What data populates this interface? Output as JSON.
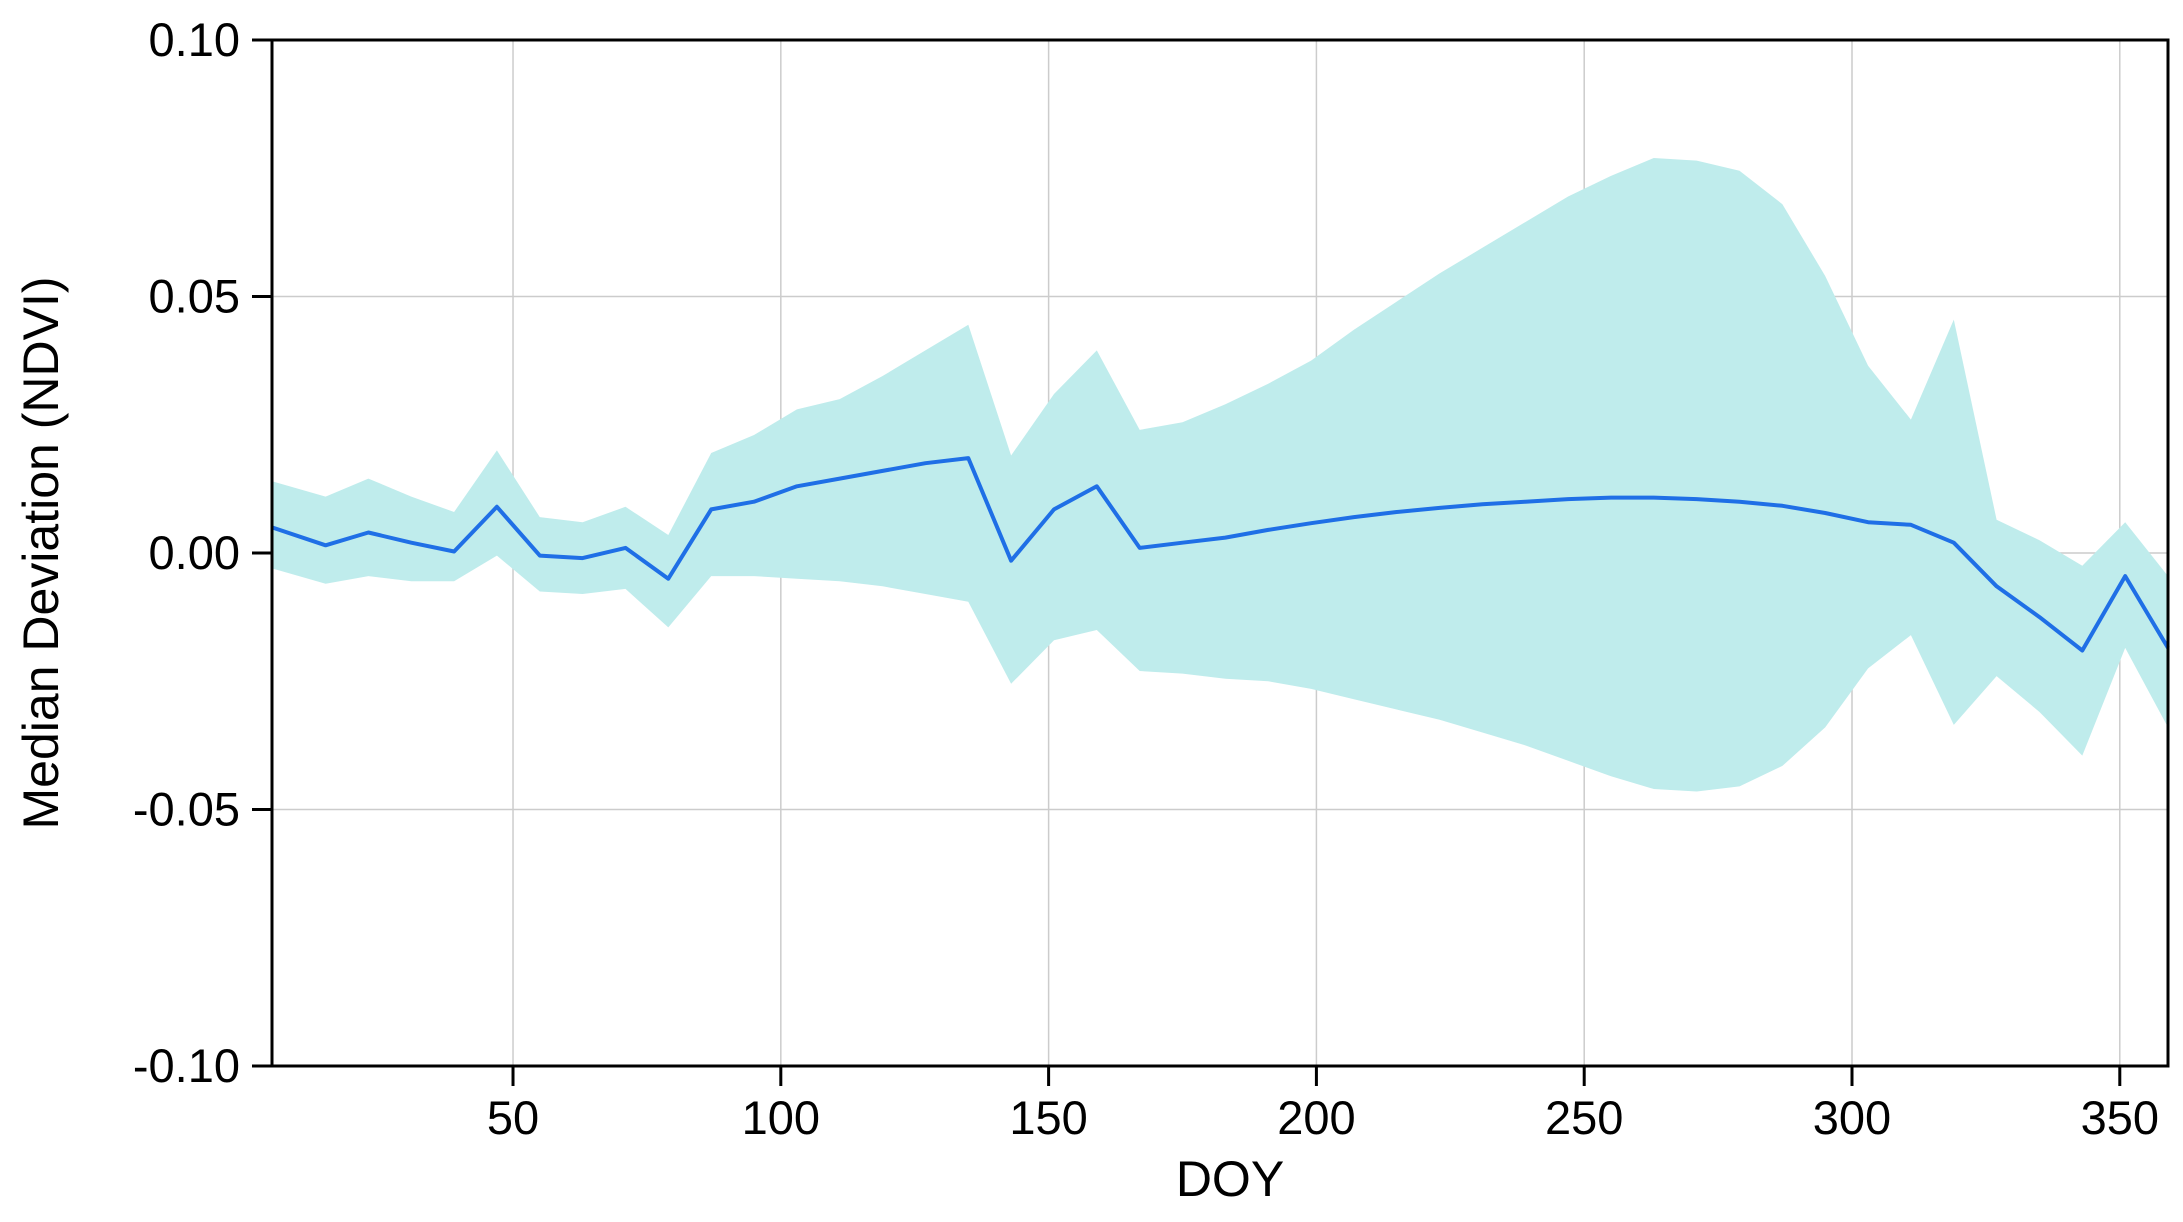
{
  "chart_data": {
    "type": "line",
    "title": "",
    "xlabel": "DOY",
    "ylabel": "Median Deviation (NDVI)",
    "xlim": [
      5,
      359
    ],
    "ylim": [
      -0.1,
      0.1
    ],
    "grid": true,
    "x_ticks": [
      50,
      100,
      150,
      200,
      250,
      300,
      350
    ],
    "x_tick_labels": [
      "50",
      "100",
      "150",
      "200",
      "250",
      "300",
      "350"
    ],
    "y_ticks": [
      0.1,
      0.05,
      0.0,
      -0.05,
      -0.1
    ],
    "y_tick_labels": [
      "0.10",
      "0.05",
      "0.00",
      "-0.05",
      "-0.10"
    ],
    "colors": {
      "median_line": "#1f6fe6",
      "band_fill": "#bfecec",
      "grid": "#cccccc",
      "axis": "#000000"
    },
    "series": [
      {
        "role": "median",
        "x": [
          5,
          15,
          23,
          31,
          39,
          47,
          55,
          63,
          71,
          79,
          87,
          95,
          103,
          111,
          119,
          127,
          135,
          143,
          151,
          159,
          167,
          175,
          183,
          191,
          199,
          207,
          215,
          223,
          231,
          239,
          247,
          255,
          263,
          271,
          279,
          287,
          295,
          303,
          311,
          319,
          327,
          335,
          343,
          351,
          359
        ],
        "values": [
          0.005,
          0.0015,
          0.004,
          0.002,
          0.0003,
          0.009,
          -0.0005,
          -0.001,
          0.001,
          -0.005,
          0.0085,
          0.01,
          0.013,
          0.0145,
          0.016,
          0.0175,
          0.0185,
          -0.0015,
          0.0085,
          0.013,
          0.001,
          0.002,
          0.003,
          0.0045,
          0.0058,
          0.007,
          0.008,
          0.0088,
          0.0095,
          0.01,
          0.0105,
          0.0108,
          0.0108,
          0.0105,
          0.01,
          0.0092,
          0.0078,
          0.006,
          0.0055,
          0.002,
          -0.0065,
          -0.0125,
          -0.019,
          -0.0045,
          -0.0185
        ]
      },
      {
        "role": "band-upper",
        "x": [
          5,
          15,
          23,
          31,
          39,
          47,
          55,
          63,
          71,
          79,
          87,
          95,
          103,
          111,
          119,
          127,
          135,
          143,
          151,
          159,
          167,
          175,
          183,
          191,
          199,
          207,
          215,
          223,
          231,
          239,
          247,
          255,
          263,
          271,
          279,
          287,
          295,
          303,
          311,
          319,
          327,
          335,
          343,
          351,
          359
        ],
        "values": [
          0.014,
          0.011,
          0.0145,
          0.011,
          0.008,
          0.02,
          0.007,
          0.006,
          0.009,
          0.0035,
          0.0195,
          0.023,
          0.028,
          0.03,
          0.0345,
          0.0395,
          0.0445,
          0.019,
          0.031,
          0.0395,
          0.024,
          0.0255,
          0.029,
          0.033,
          0.0375,
          0.0435,
          0.049,
          0.0545,
          0.0595,
          0.0645,
          0.0695,
          0.0735,
          0.077,
          0.0765,
          0.0745,
          0.068,
          0.054,
          0.0365,
          0.026,
          0.0455,
          0.0065,
          0.0025,
          -0.0025,
          0.006,
          -0.0045
        ]
      },
      {
        "role": "band-lower",
        "x": [
          5,
          15,
          23,
          31,
          39,
          47,
          55,
          63,
          71,
          79,
          87,
          95,
          103,
          111,
          119,
          127,
          135,
          143,
          151,
          159,
          167,
          175,
          183,
          191,
          199,
          207,
          215,
          223,
          231,
          239,
          247,
          255,
          263,
          271,
          279,
          287,
          295,
          303,
          311,
          319,
          327,
          335,
          343,
          351,
          359
        ],
        "values": [
          -0.003,
          -0.006,
          -0.0045,
          -0.0055,
          -0.0055,
          -0.0005,
          -0.0075,
          -0.008,
          -0.007,
          -0.0145,
          -0.0045,
          -0.0045,
          -0.005,
          -0.0055,
          -0.0065,
          -0.008,
          -0.0095,
          -0.0255,
          -0.017,
          -0.015,
          -0.023,
          -0.0235,
          -0.0245,
          -0.025,
          -0.0265,
          -0.0285,
          -0.0305,
          -0.0325,
          -0.035,
          -0.0375,
          -0.0405,
          -0.0435,
          -0.046,
          -0.0465,
          -0.0455,
          -0.0415,
          -0.034,
          -0.0225,
          -0.016,
          -0.0335,
          -0.024,
          -0.031,
          -0.0395,
          -0.0185,
          -0.034
        ]
      }
    ]
  }
}
